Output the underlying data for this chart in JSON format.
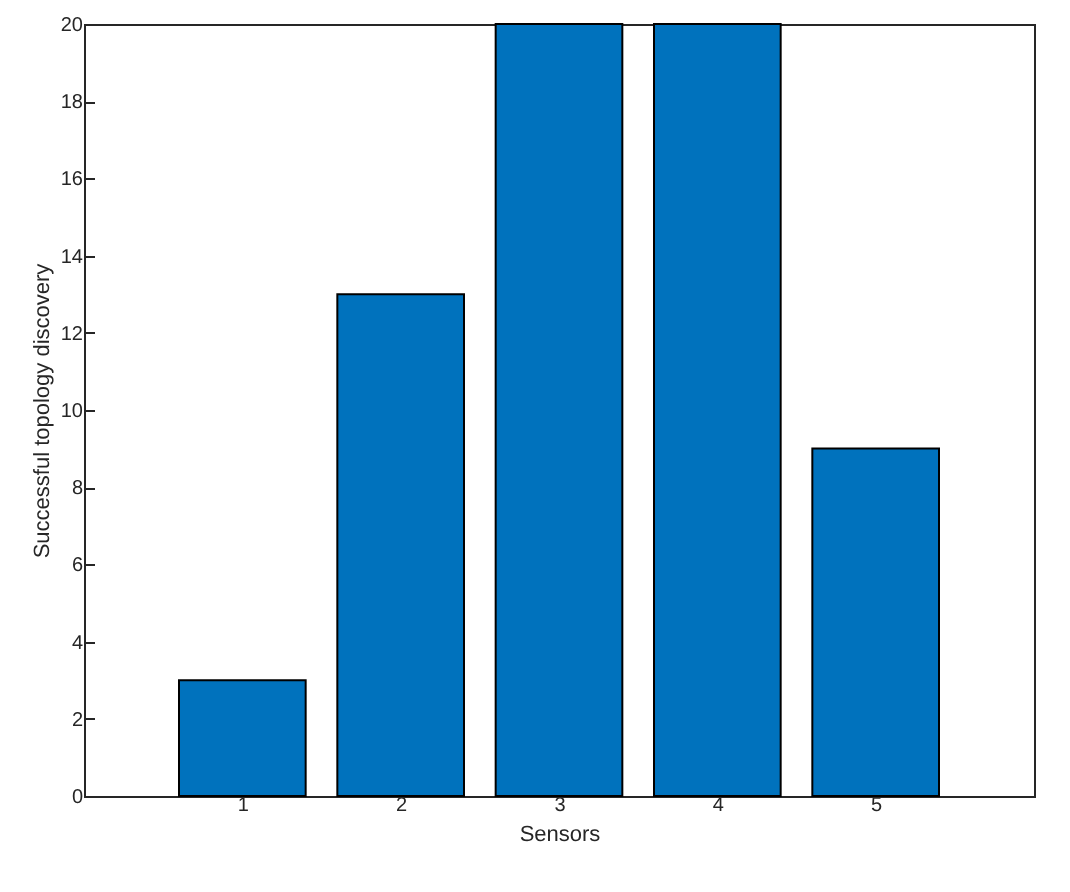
{
  "chart_data": {
    "type": "bar",
    "xlabel": "Sensors",
    "ylabel": "Successful topology discovery",
    "x": [
      1,
      2,
      3,
      4,
      5
    ],
    "values": [
      3,
      13,
      20,
      20,
      9
    ],
    "color": "#0072bd",
    "xlim": [
      0,
      6
    ],
    "xticks": [
      1,
      2,
      3,
      4,
      5
    ],
    "ylim": [
      0,
      20
    ],
    "yticks": [
      0,
      2,
      4,
      6,
      8,
      10,
      12,
      14,
      16,
      18,
      20
    ],
    "grid": false,
    "legend": false
  }
}
